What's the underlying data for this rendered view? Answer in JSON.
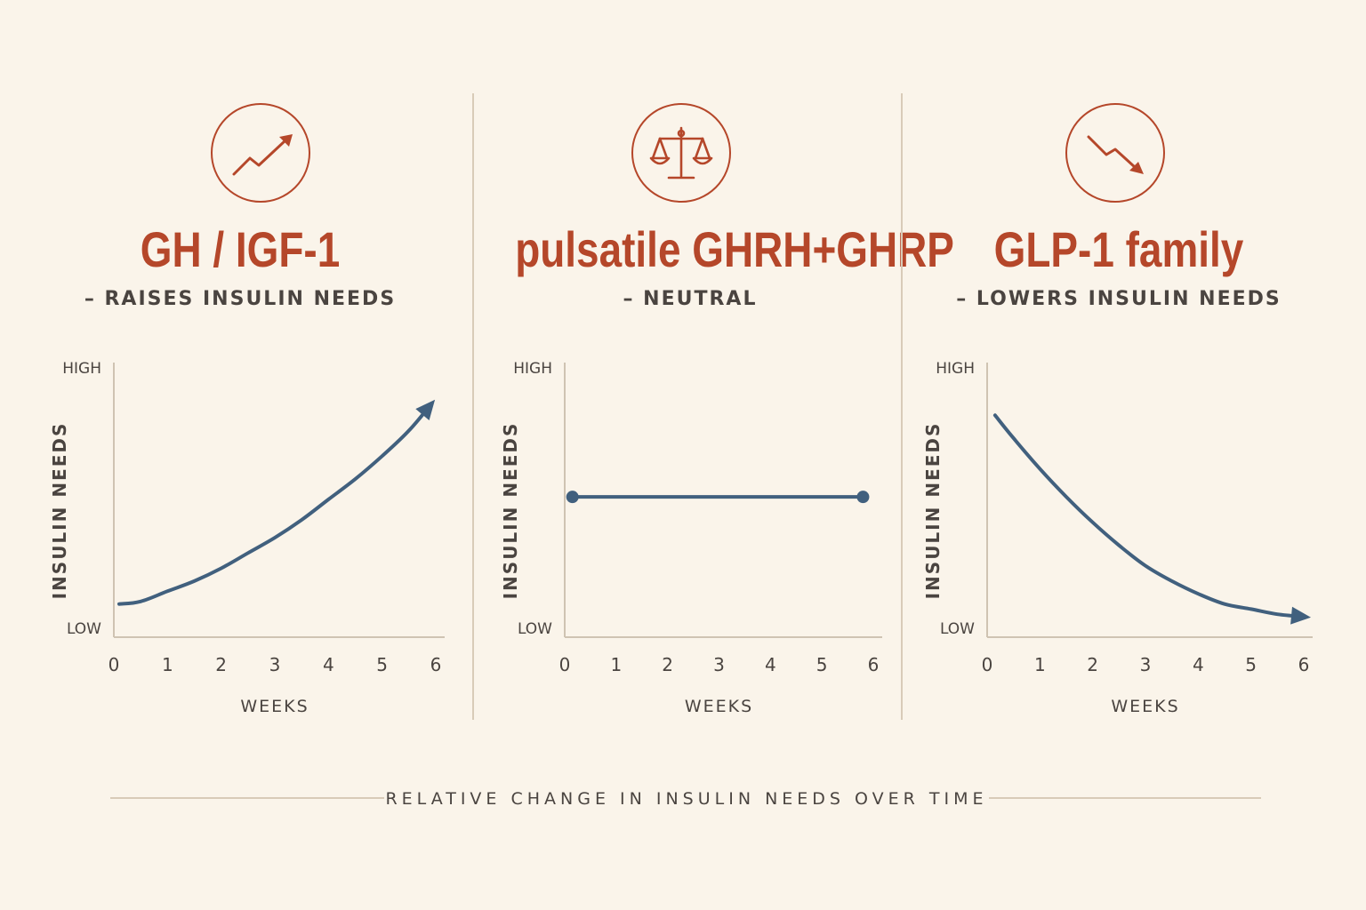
{
  "colors": {
    "accent": "#b5472a",
    "line": "#41607e",
    "axis": "#cfc3b2",
    "text": "#4a4440",
    "background": "#faf4ea"
  },
  "footer": "RELATIVE CHANGE IN INSULIN NEEDS OVER TIME",
  "panels": [
    {
      "icon": "trend-up-icon",
      "title": "GH / IGF-1",
      "subtitle": "– RAISES INSULIN NEEDS"
    },
    {
      "icon": "balance-scale-icon",
      "title": "pulsatile GHRH+GHRP",
      "subtitle": "– NEUTRAL"
    },
    {
      "icon": "trend-down-icon",
      "title": "GLP-1 family",
      "subtitle": "– LOWERS INSULIN NEEDS"
    }
  ],
  "chart_data": [
    {
      "type": "line",
      "title": "GH / IGF-1",
      "xlabel": "WEEKS",
      "ylabel": "INSULIN NEEDS",
      "xticks": [
        "0",
        "1",
        "2",
        "3",
        "4",
        "5",
        "6"
      ],
      "yticks": [
        "LOW",
        "HIGH"
      ],
      "xlim": [
        0,
        6
      ],
      "ylim": [
        0,
        1
      ],
      "x": [
        0.1,
        0.5,
        1,
        1.5,
        2,
        2.5,
        3,
        3.5,
        4,
        4.5,
        5,
        5.5,
        5.9
      ],
      "y": [
        0.13,
        0.14,
        0.18,
        0.22,
        0.27,
        0.33,
        0.39,
        0.46,
        0.54,
        0.62,
        0.71,
        0.81,
        0.91
      ],
      "end_marker": "arrow",
      "grid": false
    },
    {
      "type": "line",
      "title": "pulsatile GHRH+GHRP",
      "xlabel": "WEEKS",
      "ylabel": "INSULIN NEEDS",
      "xticks": [
        "0",
        "1",
        "2",
        "3",
        "4",
        "5",
        "6"
      ],
      "yticks": [
        "LOW",
        "HIGH"
      ],
      "xlim": [
        0,
        6
      ],
      "ylim": [
        0,
        1
      ],
      "x": [
        0.15,
        5.8
      ],
      "y": [
        0.55,
        0.55
      ],
      "end_marker": "dots",
      "grid": false
    },
    {
      "type": "line",
      "title": "GLP-1 family",
      "xlabel": "WEEKS",
      "ylabel": "INSULIN NEEDS",
      "xticks": [
        "0",
        "1",
        "2",
        "3",
        "4",
        "5",
        "6"
      ],
      "yticks": [
        "LOW",
        "HIGH"
      ],
      "xlim": [
        0,
        6
      ],
      "ylim": [
        0,
        1
      ],
      "x": [
        0.15,
        0.5,
        1,
        1.5,
        2,
        2.5,
        3,
        3.5,
        4,
        4.5,
        5,
        5.5,
        6
      ],
      "y": [
        0.87,
        0.78,
        0.66,
        0.55,
        0.45,
        0.36,
        0.28,
        0.22,
        0.17,
        0.13,
        0.11,
        0.09,
        0.08
      ],
      "end_marker": "arrow",
      "grid": false
    }
  ]
}
